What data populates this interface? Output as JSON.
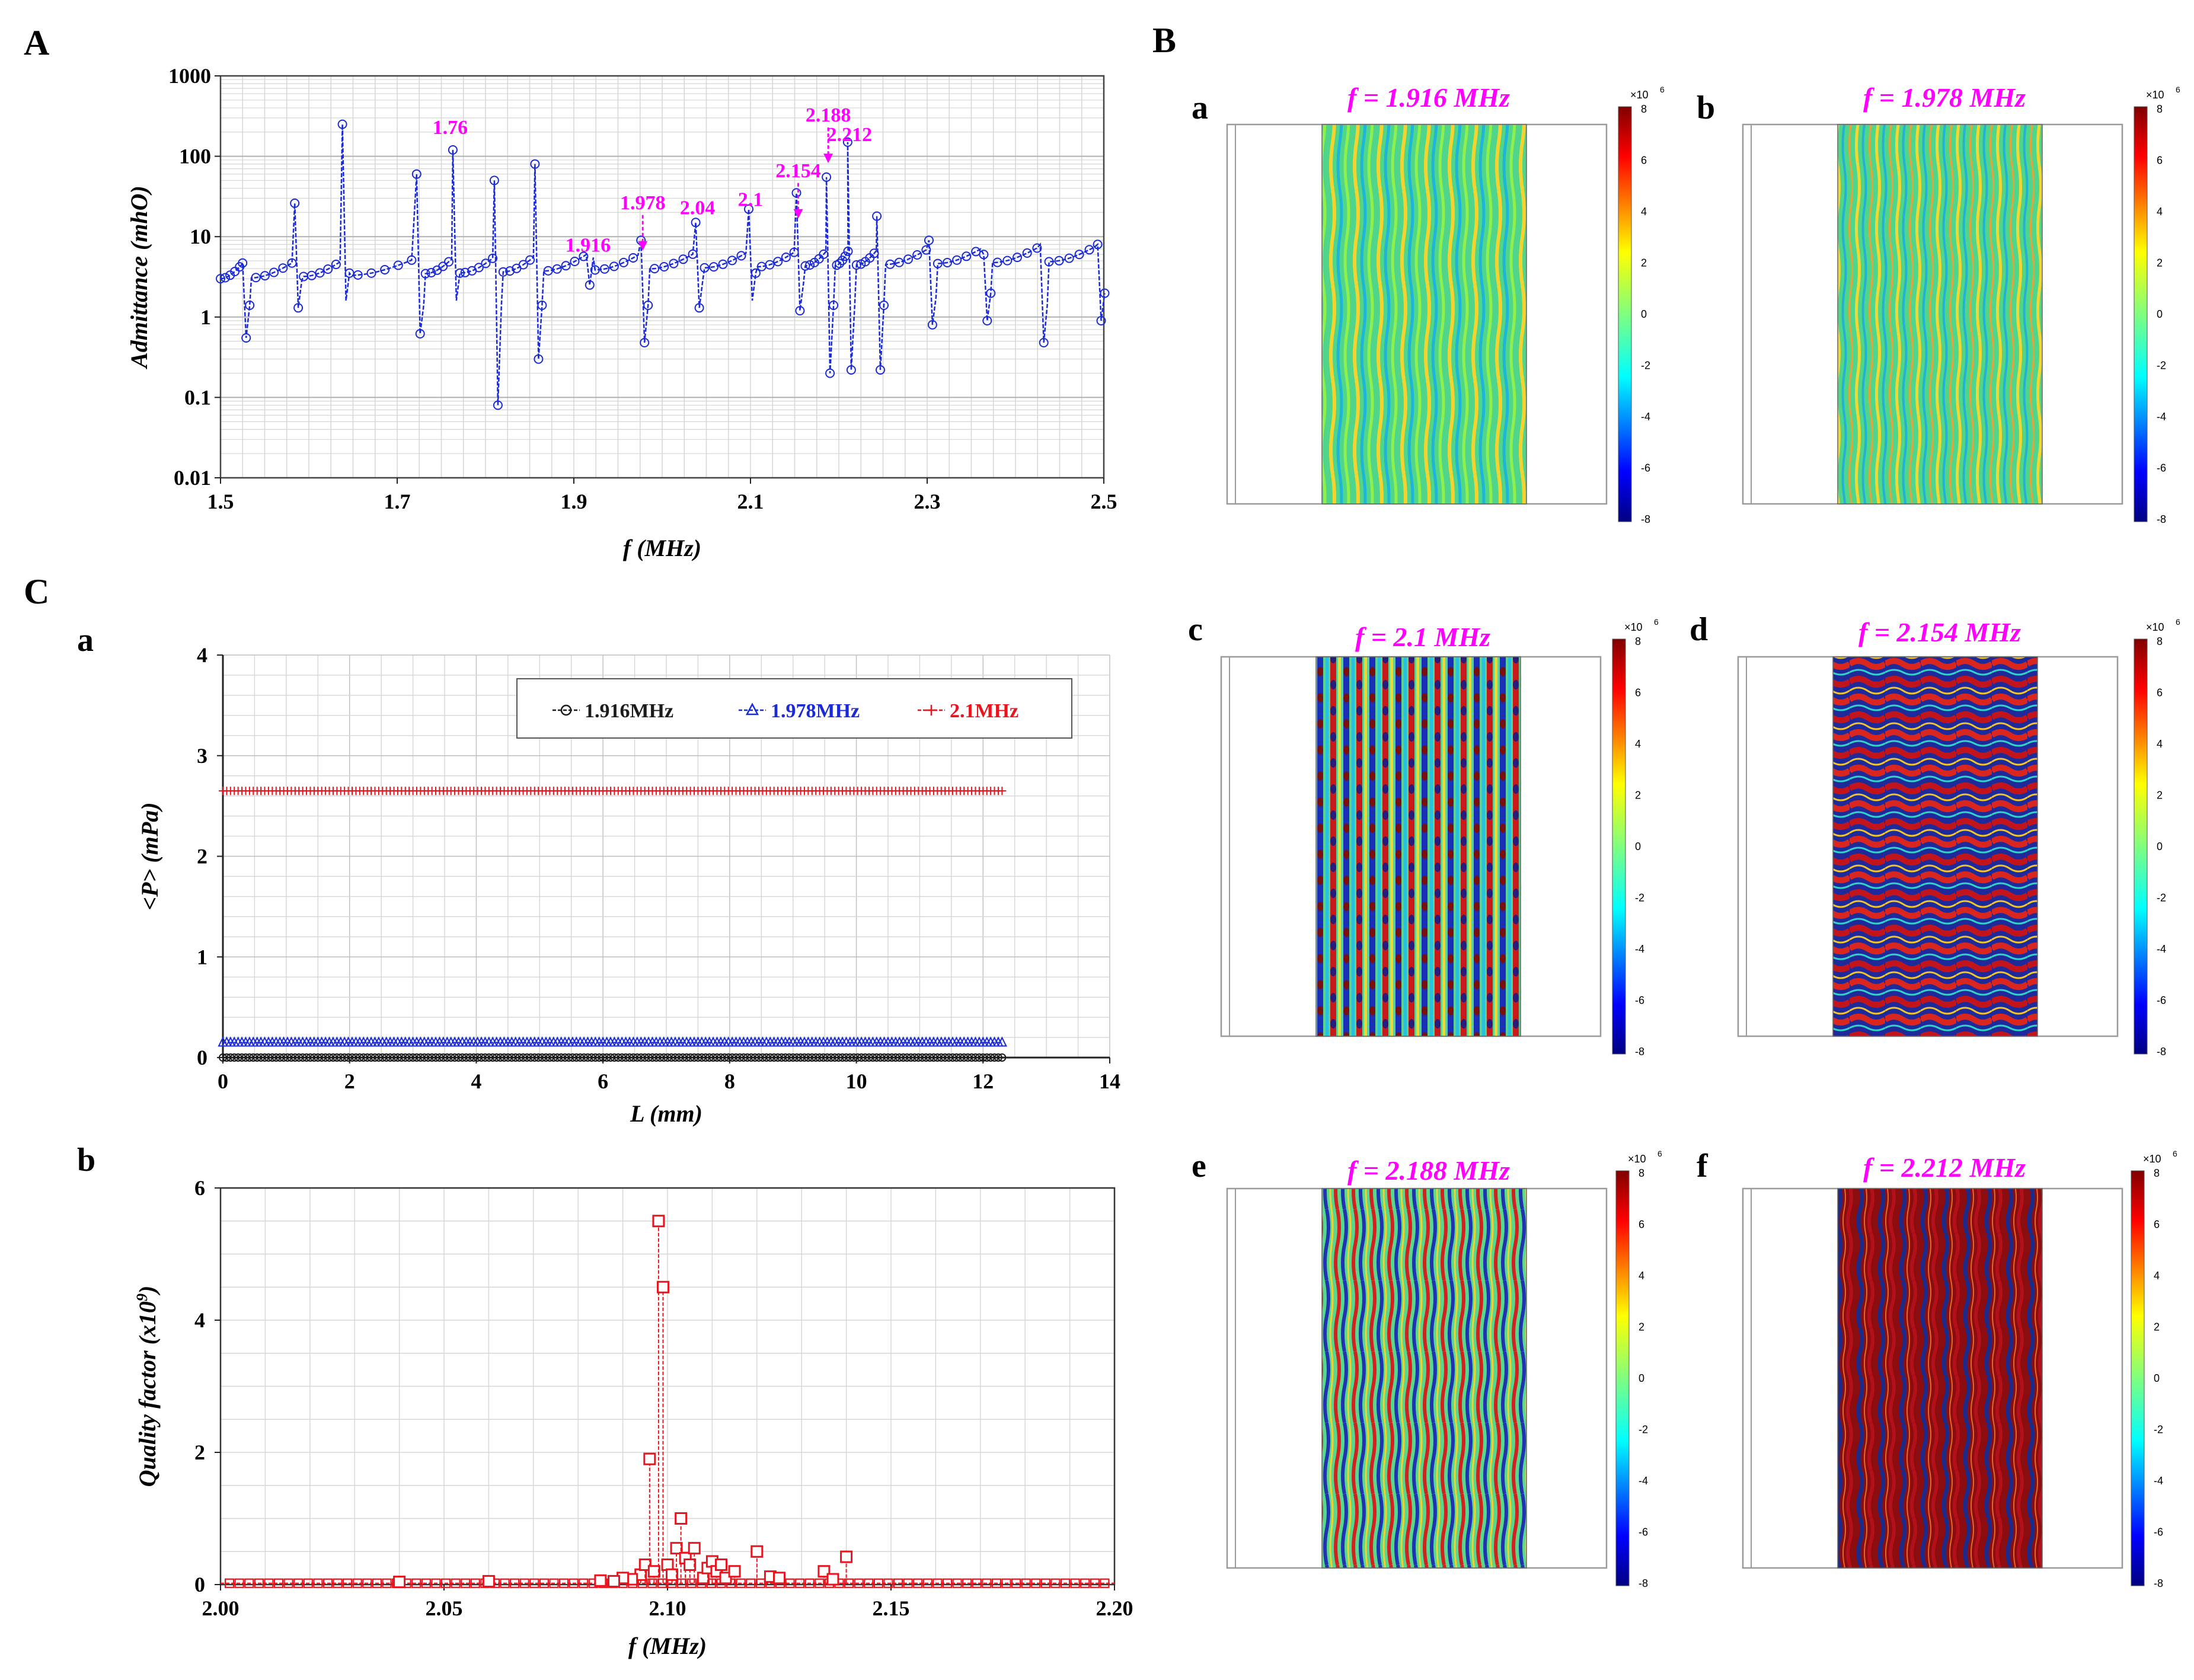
{
  "panel_labels": {
    "A": "A",
    "B": "B",
    "C": "C"
  },
  "colors": {
    "blue": "#1a2bd6",
    "red": "#e8141e",
    "black": "#1c1c1c",
    "magenta": "#ff00ff",
    "grid": "#d6d6d6"
  },
  "chart_data": [
    {
      "id": "A",
      "type": "line",
      "scale": "log",
      "xlabel": "f (MHz)",
      "ylabel": "Admittance (mhO)",
      "xlim": [
        1.5,
        2.5
      ],
      "ylim": [
        0.01,
        1000
      ],
      "xticks": [
        "1.5",
        "1.7",
        "1.9",
        "2.1",
        "2.3",
        "2.5"
      ],
      "yticks": [
        "0.01",
        "0.1",
        "1",
        "10",
        "100",
        "1000"
      ],
      "series_color": "blue",
      "resonances": [
        {
          "f": 1.527,
          "peak": 4.7,
          "dip": 0.55
        },
        {
          "f": 1.586,
          "peak": 26,
          "dip": 1.3
        },
        {
          "f": 1.64,
          "peak": 250,
          "dip": 1.6
        },
        {
          "f": 1.724,
          "peak": 60,
          "dip": 0.62
        },
        {
          "f": 1.765,
          "peak": 120,
          "dip": 1.6
        },
        {
          "f": 1.812,
          "peak": 50,
          "dip": 0.08
        },
        {
          "f": 1.858,
          "peak": 80,
          "dip": 0.3
        },
        {
          "f": 1.916,
          "peak": 6,
          "dip": 2.5
        },
        {
          "f": 1.978,
          "peak": 9,
          "dip": 0.48
        },
        {
          "f": 2.04,
          "peak": 15,
          "dip": 1.3
        },
        {
          "f": 2.1,
          "peak": 22,
          "dip": 1.6
        },
        {
          "f": 2.154,
          "peak": 35,
          "dip": 1.2
        },
        {
          "f": 2.188,
          "peak": 55,
          "dip": 0.2
        },
        {
          "f": 2.212,
          "peak": 150,
          "dip": 0.22
        },
        {
          "f": 2.245,
          "peak": 18,
          "dip": 0.22
        },
        {
          "f": 2.304,
          "peak": 9,
          "dip": 0.8
        },
        {
          "f": 2.366,
          "peak": 6,
          "dip": 0.9
        },
        {
          "f": 2.43,
          "peak": 8,
          "dip": 0.48
        },
        {
          "f": 2.495,
          "peak": 8,
          "dip": 0.9
        }
      ],
      "annotations": [
        {
          "text": "1.76",
          "f": 1.76,
          "y": 190,
          "arrow": false
        },
        {
          "text": "1.978",
          "f": 1.978,
          "y": 22,
          "arrow": true
        },
        {
          "text": "1.916",
          "f": 1.916,
          "y": 6.5,
          "arrow": false
        },
        {
          "text": "2.04",
          "f": 2.04,
          "y": 19,
          "arrow": false
        },
        {
          "text": "2.1",
          "f": 2.1,
          "y": 24,
          "arrow": false
        },
        {
          "text": "2.154",
          "f": 2.154,
          "y": 55,
          "arrow": true
        },
        {
          "text": "2.188",
          "f": 2.188,
          "y": 270,
          "arrow": true
        },
        {
          "text": "2.212",
          "f": 2.212,
          "y": 155,
          "arrow": false
        }
      ]
    },
    {
      "id": "C-a",
      "type": "scatter",
      "panel_label": "a",
      "xlabel": "L (mm)",
      "ylabel": "<P> (mPa)",
      "xlim": [
        0,
        14
      ],
      "ylim": [
        0,
        4
      ],
      "xticks": [
        "0",
        "2",
        "4",
        "6",
        "8",
        "10",
        "12",
        "14"
      ],
      "yticks": [
        "0",
        "1",
        "2",
        "3",
        "4"
      ],
      "legend_position": "top-right",
      "series": [
        {
          "name": "1.916MHz",
          "color": "black",
          "marker": "circle",
          "x_range": [
            0,
            12.3
          ],
          "value": 0.0
        },
        {
          "name": "1.978MHz",
          "color": "blue",
          "marker": "triangle",
          "x_range": [
            0,
            12.3
          ],
          "value": 0.15
        },
        {
          "name": "2.1MHz",
          "color": "red",
          "marker": "plus",
          "x_range": [
            0,
            12.3
          ],
          "value": 2.65
        }
      ]
    },
    {
      "id": "C-b",
      "type": "scatter",
      "panel_label": "b",
      "xlabel": "f (MHz)",
      "ylabel": "Quality factor (x10",
      "ylabel_sup": "9",
      "ylabel_end": ")",
      "xlim": [
        2.0,
        2.2
      ],
      "ylim": [
        0,
        6
      ],
      "xticks": [
        "2.00",
        "2.05",
        "2.10",
        "2.15",
        "2.20"
      ],
      "yticks": [
        "0",
        "2",
        "4",
        "6"
      ],
      "series_color": "red",
      "points": [
        [
          2.094,
          0.15
        ],
        [
          2.095,
          0.3
        ],
        [
          2.096,
          1.9
        ],
        [
          2.097,
          0.2
        ],
        [
          2.098,
          5.5
        ],
        [
          2.099,
          4.5
        ],
        [
          2.1,
          0.3
        ],
        [
          2.101,
          0.15
        ],
        [
          2.102,
          0.55
        ],
        [
          2.103,
          1.0
        ],
        [
          2.104,
          0.4
        ],
        [
          2.105,
          0.3
        ],
        [
          2.106,
          0.55
        ],
        [
          2.108,
          0.1
        ],
        [
          2.109,
          0.25
        ],
        [
          2.11,
          0.35
        ],
        [
          2.111,
          0.2
        ],
        [
          2.112,
          0.3
        ],
        [
          2.113,
          0.1
        ],
        [
          2.115,
          0.2
        ],
        [
          2.12,
          0.5
        ],
        [
          2.123,
          0.12
        ],
        [
          2.125,
          0.1
        ],
        [
          2.135,
          0.2
        ],
        [
          2.137,
          0.08
        ],
        [
          2.14,
          0.42
        ],
        [
          2.092,
          0.08
        ],
        [
          2.09,
          0.1
        ],
        [
          2.088,
          0.05
        ],
        [
          2.085,
          0.06
        ],
        [
          2.06,
          0.05
        ],
        [
          2.04,
          0.04
        ]
      ]
    }
  ],
  "field_panels": [
    {
      "letter": "a",
      "title": "f = 1.916 MHz",
      "pattern": "stripes",
      "density": 16
    },
    {
      "letter": "b",
      "title": "f = 1.978 MHz",
      "pattern": "stripes",
      "density": 18
    },
    {
      "letter": "c",
      "title": "f = 2.1 MHz",
      "pattern": "checker",
      "density": 14
    },
    {
      "letter": "d",
      "title": "f = 2.154 MHz",
      "pattern": "wavy",
      "density": 12
    },
    {
      "letter": "e",
      "title": "f = 2.188 MHz",
      "pattern": "wavy-light",
      "density": 16
    },
    {
      "letter": "f",
      "title": "f = 2.212 MHz",
      "pattern": "dense",
      "density": 20
    }
  ],
  "colorbar": {
    "exponent": "×10",
    "exponent_power": "6",
    "ticks": [
      "8",
      "6",
      "4",
      "2",
      "0",
      "-2",
      "-4",
      "-6",
      "-8"
    ]
  }
}
